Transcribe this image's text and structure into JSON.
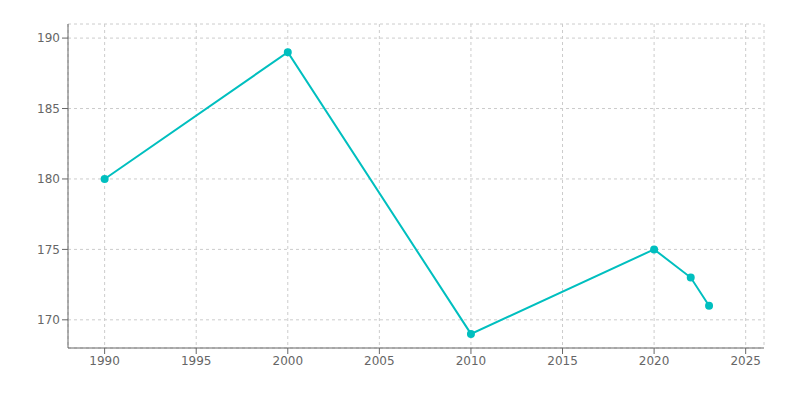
{
  "chart_data": {
    "type": "line",
    "x": [
      1990,
      2000,
      2010,
      2020,
      2022,
      2023
    ],
    "values": [
      180,
      189,
      169,
      175,
      173,
      171
    ],
    "color": "#00BFBF",
    "marker": "circle",
    "xlim": [
      1988,
      2026
    ],
    "ylim": [
      168,
      191
    ],
    "xticks": [
      1990,
      1995,
      2000,
      2005,
      2010,
      2015,
      2020,
      2025
    ],
    "yticks": [
      170,
      175,
      180,
      185,
      190
    ],
    "grid": true
  }
}
